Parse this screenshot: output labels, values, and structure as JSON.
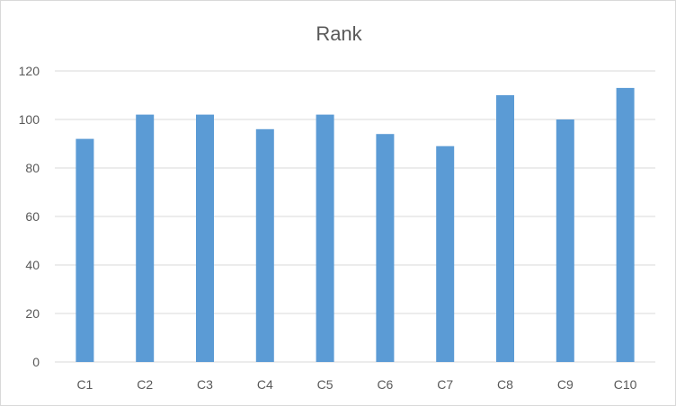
{
  "chart_data": {
    "type": "bar",
    "title": "Rank",
    "xlabel": "",
    "ylabel": "",
    "categories": [
      "C1",
      "C2",
      "C3",
      "C4",
      "C5",
      "C6",
      "C7",
      "C8",
      "C9",
      "C10"
    ],
    "series": [
      {
        "values": [
          92,
          102,
          102,
          96,
          102,
          94,
          89,
          110,
          100,
          113
        ]
      }
    ],
    "ylim": [
      0,
      120
    ],
    "yticks": [
      "0",
      "20",
      "40",
      "60",
      "80",
      "100",
      "120"
    ],
    "grid": true,
    "legend": "none",
    "bar_color": "#5b9bd5",
    "grid_color": "#d9d9d9",
    "text_color": "#595959"
  }
}
